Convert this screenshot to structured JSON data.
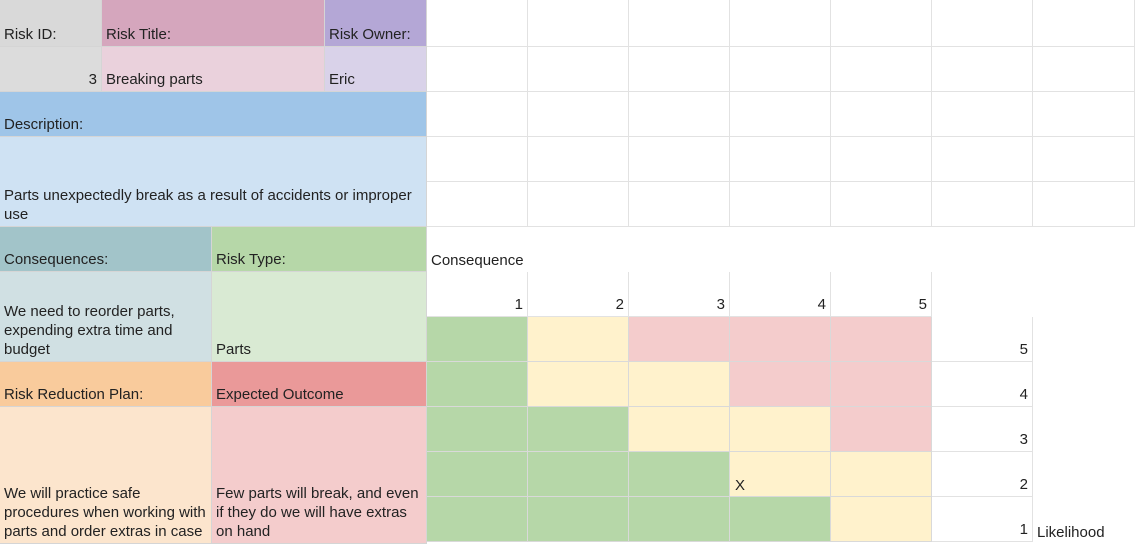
{
  "sheet": {
    "risk_id_label": "Risk ID:",
    "risk_title_label": "Risk Title:",
    "risk_owner_label": "Risk Owner:",
    "risk_id": "3",
    "risk_title": "Breaking parts",
    "risk_owner": "Eric",
    "description_label": "Description:",
    "description": "Parts unexpectedly break as a result of accidents or improper use",
    "consequences_label": "Consequences:",
    "risk_type_label": "Risk Type:",
    "consequences": "We need to reorder parts, expending extra time and budget",
    "risk_type": "Parts",
    "reduction_label": "Risk Reduction Plan:",
    "outcome_label": "Expected Outcome",
    "reduction_plan": "We will practice safe procedures when working with parts and order extras in case",
    "expected_outcome": "Few parts will break, and even if they do we will have extras on hand"
  },
  "matrix": {
    "consequence_label": "Consequence",
    "likelihood_label": "Likelihood",
    "consequence_ticks": [
      "1",
      "2",
      "3",
      "4",
      "5"
    ],
    "likelihood_ticks": [
      "5",
      "4",
      "3",
      "2",
      "1"
    ],
    "rows": [
      [
        "green",
        "yellow",
        "red",
        "red",
        "red"
      ],
      [
        "green",
        "yellow",
        "yellow",
        "red",
        "red"
      ],
      [
        "green",
        "green",
        "yellow",
        "yellow",
        "red"
      ],
      [
        "green",
        "green",
        "green",
        "yellow",
        "yellow"
      ],
      [
        "green",
        "green",
        "green",
        "green",
        "yellow"
      ]
    ],
    "marker": "X",
    "marker_consequence": 4,
    "marker_likelihood": 2
  },
  "colors": {
    "gray": "#d9d9d9",
    "gray_light": "#dcdcdc",
    "pink_header": "#d5a6bd",
    "pink_light": "#ead1dc",
    "purple_header": "#b4a7d6",
    "purple_light": "#d9d2e9",
    "blue_header": "#9fc5e8",
    "blue_light": "#cfe2f3",
    "teal_header": "#a2c4c9",
    "teal_light": "#d0e0e3",
    "green_header": "#b6d7a8",
    "green_light": "#d9ead3",
    "orange_header": "#f9cb9c",
    "orange_light": "#fce5cd",
    "red_header": "#ea9999",
    "red_light": "#f4cccc",
    "matrix_green": "#b6d7a8",
    "matrix_yellow": "#fff2cc",
    "matrix_red": "#f4cccc"
  }
}
